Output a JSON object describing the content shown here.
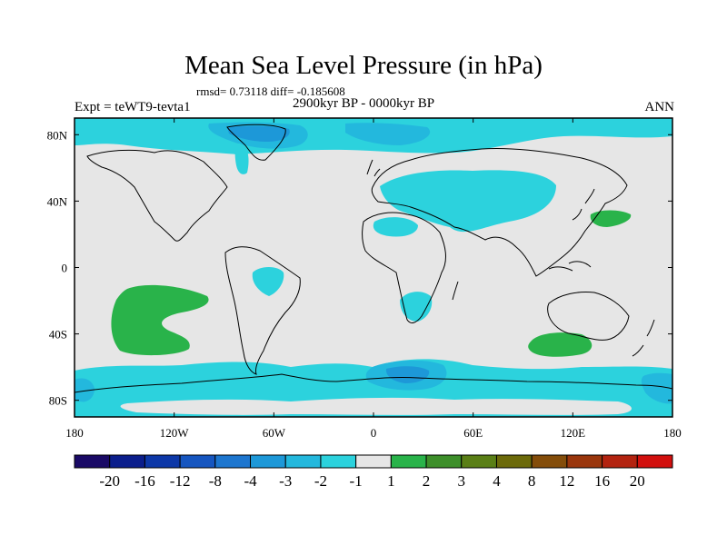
{
  "header": {
    "title": "Mean Sea Level Pressure (in hPa)",
    "stats": "rmsd= 0.73118 diff= -0.185608",
    "period": "2900kyr BP - 0000kyr BP",
    "experiment": "Expt = teWT9-tevta1",
    "season": "ANN"
  },
  "axes": {
    "x_ticks": [
      "180",
      "120W",
      "60W",
      "0",
      "60E",
      "120E",
      "180"
    ],
    "y_ticks": [
      "80N",
      "40N",
      "0",
      "40S",
      "80S"
    ]
  },
  "colorbar": {
    "colors": [
      "#1a0a66",
      "#0b1e8c",
      "#0d38a8",
      "#1656c0",
      "#1d76cf",
      "#1d98d8",
      "#23b8dd",
      "#2cd2dd",
      "#e6e6e6",
      "#29b34a",
      "#3d8f2a",
      "#5a7f16",
      "#6c6a0a",
      "#844d0a",
      "#9a360c",
      "#b32310",
      "#d2100e"
    ],
    "labels": [
      "-20",
      "-16",
      "-12",
      "-8",
      "-4",
      "-3",
      "-2",
      "-1",
      "1",
      "2",
      "3",
      "4",
      "8",
      "12",
      "16",
      "20"
    ]
  },
  "chart_data": {
    "type": "heatmap",
    "title": "Mean Sea Level Pressure (in hPa)",
    "subtitle": "2900kyr BP - 0000kyr BP",
    "units": "hPa",
    "projection": "cylindrical equidistant",
    "xlim": [
      -180,
      180
    ],
    "ylim": [
      -90,
      90
    ],
    "levels": [
      -20,
      -16,
      -12,
      -8,
      -4,
      -3,
      -2,
      -1,
      1,
      2,
      3,
      4,
      8,
      12,
      16,
      20
    ],
    "anomaly_regions": [
      {
        "region": "Arctic / high-latitude northern band",
        "range_hPa": [
          -3,
          -1
        ]
      },
      {
        "region": "Greenland / Arctic ocean core",
        "range_hPa": [
          -4,
          -2
        ]
      },
      {
        "region": "Eurasia / Mediterranean / Middle East",
        "range_hPa": [
          -2,
          -1
        ]
      },
      {
        "region": "North Africa / Sahara",
        "range_hPa": [
          -2,
          -1
        ]
      },
      {
        "region": "Amazon basin",
        "range_hPa": [
          -2,
          -1
        ]
      },
      {
        "region": "Southern Africa",
        "range_hPa": [
          -2,
          -1
        ]
      },
      {
        "region": "Southern Ocean band",
        "range_hPa": [
          -3,
          -1
        ]
      },
      {
        "region": "Southern Ocean south of Africa",
        "range_hPa": [
          -4,
          -2
        ]
      },
      {
        "region": "North-west Pacific off Japan",
        "range_hPa": [
          1,
          2
        ]
      },
      {
        "region": "South Pacific",
        "range_hPa": [
          1,
          2
        ]
      },
      {
        "region": "South Indian Ocean",
        "range_hPa": [
          1,
          2
        ]
      }
    ]
  }
}
